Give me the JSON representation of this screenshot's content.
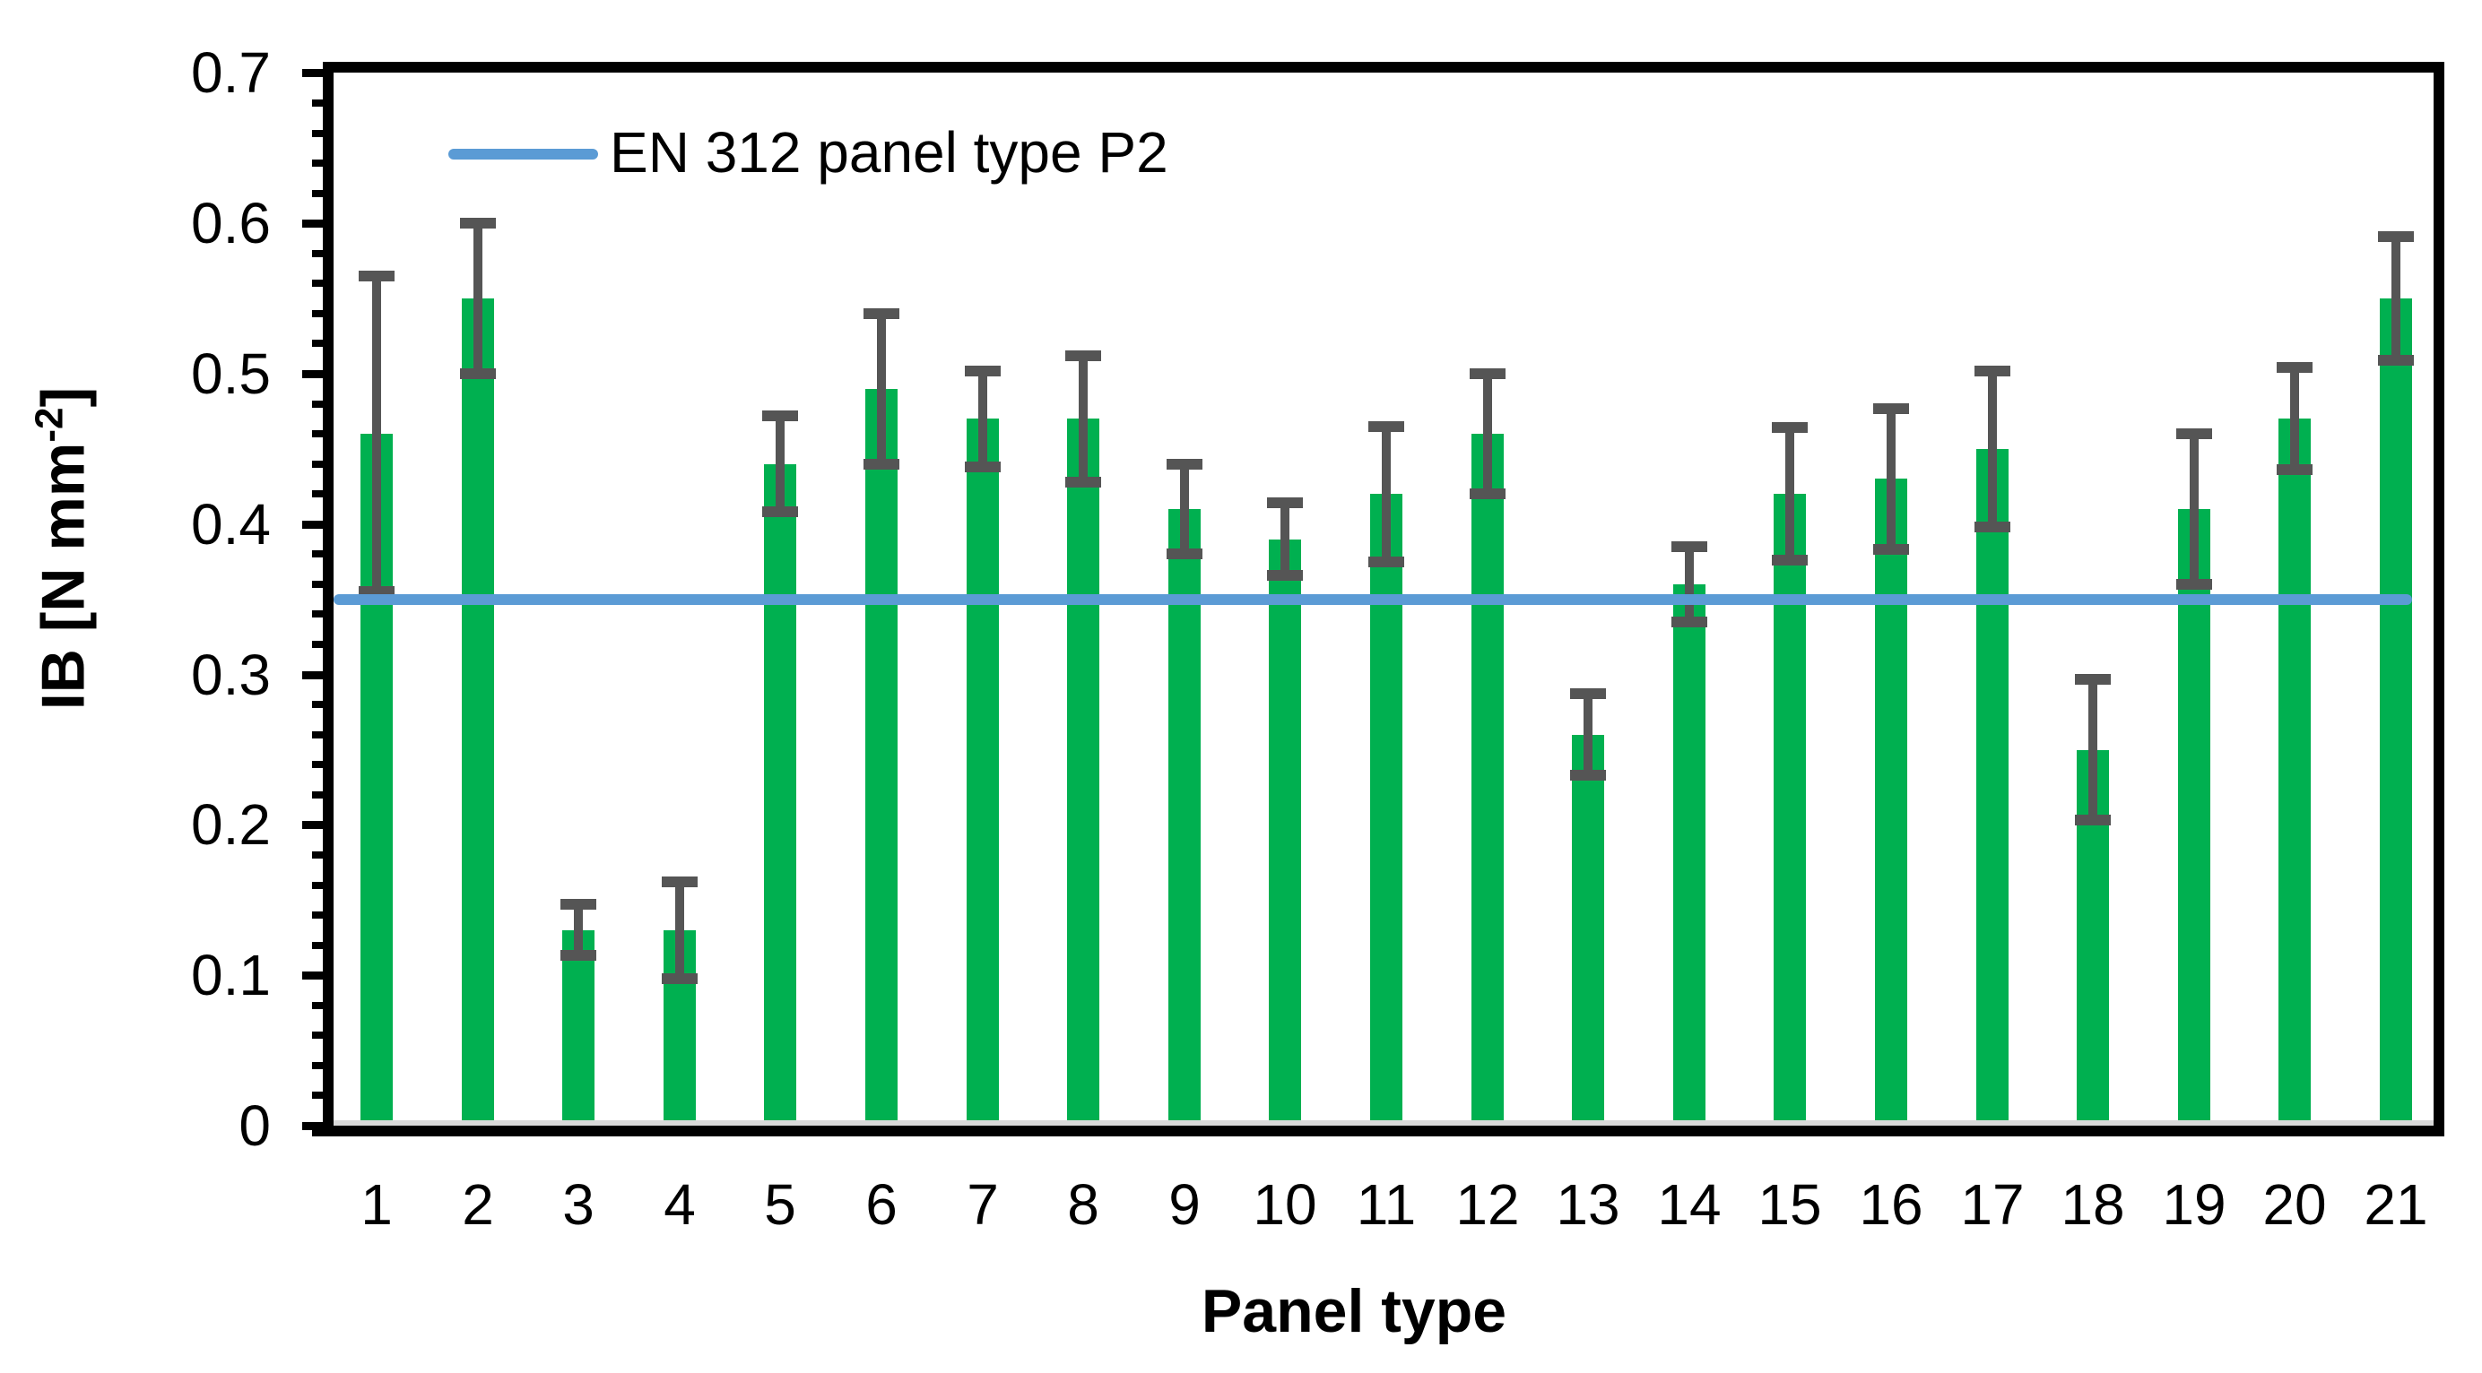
{
  "chart": {
    "ylabel_parts": {
      "prefix": "IB [N mm",
      "sup": "-2",
      "suffix": "]"
    }
  },
  "chart_data": {
    "type": "bar",
    "title": "",
    "xlabel": "Panel type",
    "ylabel": "IB [N mm⁻²]",
    "categories": [
      "1",
      "2",
      "3",
      "4",
      "5",
      "6",
      "7",
      "8",
      "9",
      "10",
      "11",
      "12",
      "13",
      "14",
      "15",
      "16",
      "17",
      "18",
      "19",
      "20",
      "21"
    ],
    "values": [
      0.46,
      0.55,
      0.13,
      0.13,
      0.44,
      0.49,
      0.47,
      0.47,
      0.41,
      0.39,
      0.42,
      0.46,
      0.26,
      0.36,
      0.42,
      0.43,
      0.45,
      0.25,
      0.41,
      0.47,
      0.55
    ],
    "error_bars": [
      0.105,
      0.05,
      0.017,
      0.032,
      0.032,
      0.05,
      0.032,
      0.042,
      0.03,
      0.024,
      0.045,
      0.04,
      0.027,
      0.025,
      0.044,
      0.047,
      0.052,
      0.047,
      0.05,
      0.034,
      0.041
    ],
    "reference_line": {
      "value": 0.35,
      "label": "EN 312 panel type P2",
      "color": "#5B9BD5"
    },
    "ylim": [
      0,
      0.7
    ],
    "ytick_major": 0.1,
    "ytick_minor": 0.02,
    "ytick_labels": [
      "0",
      "0.1",
      "0.2",
      "0.3",
      "0.4",
      "0.5",
      "0.6",
      "0.7"
    ],
    "grid": false,
    "legend_position": "top-left-inside",
    "colors": {
      "bar": "#00B050",
      "error_bar": "#555555",
      "reference_line": "#5B9BD5",
      "axis": "#000000",
      "baseline_strip": "#D9D9D9",
      "text": "#000000"
    }
  }
}
